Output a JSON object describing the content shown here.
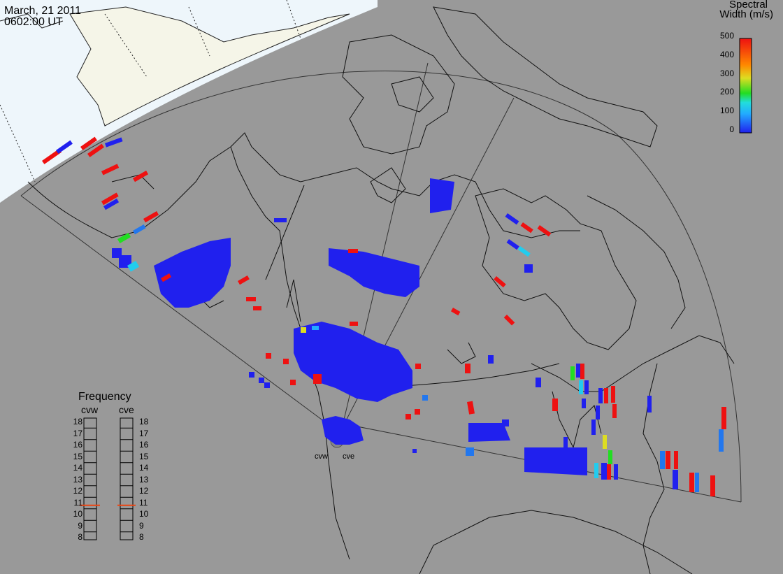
{
  "header": {
    "date": "March, 21 2011",
    "time": "0602:00 UT"
  },
  "colorbar": {
    "title_line1": "Spectral",
    "title_line2": "Width (m/s)",
    "ticks": [
      "500",
      "400",
      "300",
      "200",
      "100",
      "0"
    ],
    "range": [
      0,
      500
    ]
  },
  "frequency_panel": {
    "title": "Frequency",
    "columns": [
      {
        "label": "cvw",
        "value_mhz": 10.8
      },
      {
        "label": "cve",
        "value_mhz": 10.8
      }
    ],
    "scale": [
      "18",
      "17",
      "16",
      "15",
      "14",
      "13",
      "12",
      "11",
      "10",
      "9",
      "8"
    ]
  },
  "sites": [
    {
      "label": "cvw"
    },
    {
      "label": "cve"
    }
  ],
  "colors": {
    "background": "#999999",
    "sunlit": "#eef6fb",
    "land_sunlit": "#f5f5e8",
    "low": "#2020ee",
    "high": "#ee1111"
  }
}
